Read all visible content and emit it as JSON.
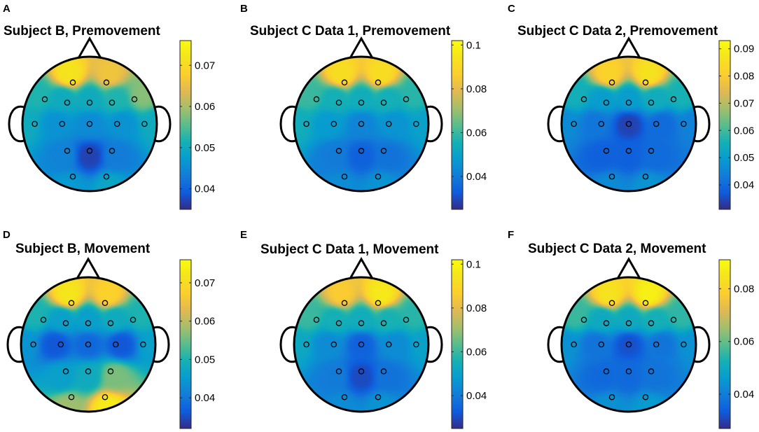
{
  "chart_data": [
    {
      "type": "heatmap",
      "panel": "A",
      "title": "Subject B, Premovement",
      "color_range": [
        0.035,
        0.076
      ],
      "colorbar_ticks": [
        "0.04",
        "0.05",
        "0.06",
        "0.07"
      ],
      "colorbar_tick_values": [
        0.04,
        0.05,
        0.06,
        0.07
      ],
      "electrodes": [
        {
          "x": -0.3,
          "y": 0.74,
          "v": 0.072
        },
        {
          "x": 0.3,
          "y": 0.74,
          "v": 0.066
        },
        {
          "x": -0.8,
          "y": 0.44,
          "v": 0.052
        },
        {
          "x": -0.4,
          "y": 0.38,
          "v": 0.05
        },
        {
          "x": 0.0,
          "y": 0.38,
          "v": 0.05
        },
        {
          "x": 0.4,
          "y": 0.38,
          "v": 0.052
        },
        {
          "x": 0.8,
          "y": 0.44,
          "v": 0.058
        },
        {
          "x": -0.98,
          "y": 0.0,
          "v": 0.05
        },
        {
          "x": -0.49,
          "y": 0.0,
          "v": 0.046
        },
        {
          "x": 0.0,
          "y": 0.0,
          "v": 0.045
        },
        {
          "x": 0.49,
          "y": 0.0,
          "v": 0.046
        },
        {
          "x": 0.98,
          "y": 0.0,
          "v": 0.05
        },
        {
          "x": -0.4,
          "y": -0.48,
          "v": 0.044
        },
        {
          "x": 0.0,
          "y": -0.48,
          "v": 0.037
        },
        {
          "x": 0.4,
          "y": -0.48,
          "v": 0.043
        },
        {
          "x": -0.3,
          "y": -0.94,
          "v": 0.047
        },
        {
          "x": 0.3,
          "y": -0.94,
          "v": 0.049
        }
      ]
    },
    {
      "type": "heatmap",
      "panel": "B",
      "title": "Subject C Data 1, Premovement",
      "color_range": [
        0.025,
        0.102
      ],
      "colorbar_ticks": [
        "0.04",
        "0.06",
        "0.08",
        "0.1"
      ],
      "colorbar_tick_values": [
        0.04,
        0.06,
        0.08,
        0.1
      ],
      "electrodes": [
        {
          "x": -0.3,
          "y": 0.74,
          "v": 0.092
        },
        {
          "x": 0.3,
          "y": 0.74,
          "v": 0.092
        },
        {
          "x": -0.8,
          "y": 0.44,
          "v": 0.06
        },
        {
          "x": -0.4,
          "y": 0.38,
          "v": 0.055
        },
        {
          "x": 0.0,
          "y": 0.38,
          "v": 0.054
        },
        {
          "x": 0.4,
          "y": 0.38,
          "v": 0.055
        },
        {
          "x": 0.8,
          "y": 0.44,
          "v": 0.058
        },
        {
          "x": -0.98,
          "y": 0.0,
          "v": 0.054
        },
        {
          "x": -0.49,
          "y": 0.0,
          "v": 0.048
        },
        {
          "x": 0.0,
          "y": 0.0,
          "v": 0.042
        },
        {
          "x": 0.49,
          "y": 0.0,
          "v": 0.046
        },
        {
          "x": 0.98,
          "y": 0.0,
          "v": 0.05
        },
        {
          "x": -0.4,
          "y": -0.48,
          "v": 0.04
        },
        {
          "x": 0.0,
          "y": -0.48,
          "v": 0.034
        },
        {
          "x": 0.4,
          "y": -0.48,
          "v": 0.038
        },
        {
          "x": -0.3,
          "y": -0.94,
          "v": 0.044
        },
        {
          "x": 0.3,
          "y": -0.94,
          "v": 0.046
        }
      ]
    },
    {
      "type": "heatmap",
      "panel": "C",
      "title": "Subject C Data 2, Premovement",
      "color_range": [
        0.031,
        0.093
      ],
      "colorbar_ticks": [
        "0.04",
        "0.05",
        "0.06",
        "0.07",
        "0.08",
        "0.09"
      ],
      "colorbar_tick_values": [
        0.04,
        0.05,
        0.06,
        0.07,
        0.08,
        0.09
      ],
      "electrodes": [
        {
          "x": -0.3,
          "y": 0.74,
          "v": 0.082
        },
        {
          "x": 0.3,
          "y": 0.74,
          "v": 0.086
        },
        {
          "x": -0.8,
          "y": 0.44,
          "v": 0.055
        },
        {
          "x": -0.4,
          "y": 0.38,
          "v": 0.05
        },
        {
          "x": 0.0,
          "y": 0.38,
          "v": 0.05
        },
        {
          "x": 0.4,
          "y": 0.38,
          "v": 0.054
        },
        {
          "x": 0.8,
          "y": 0.44,
          "v": 0.056
        },
        {
          "x": -0.98,
          "y": 0.0,
          "v": 0.046
        },
        {
          "x": -0.49,
          "y": 0.0,
          "v": 0.042
        },
        {
          "x": 0.0,
          "y": 0.0,
          "v": 0.034
        },
        {
          "x": 0.49,
          "y": 0.0,
          "v": 0.04
        },
        {
          "x": 0.98,
          "y": 0.0,
          "v": 0.044
        },
        {
          "x": -0.4,
          "y": -0.48,
          "v": 0.038
        },
        {
          "x": 0.0,
          "y": -0.48,
          "v": 0.038
        },
        {
          "x": 0.4,
          "y": -0.48,
          "v": 0.04
        },
        {
          "x": -0.3,
          "y": -0.94,
          "v": 0.046
        },
        {
          "x": 0.3,
          "y": -0.94,
          "v": 0.048
        }
      ]
    },
    {
      "type": "heatmap",
      "panel": "D",
      "title": "Subject B, Movement",
      "color_range": [
        0.032,
        0.076
      ],
      "colorbar_ticks": [
        "0.04",
        "0.05",
        "0.06",
        "0.07"
      ],
      "colorbar_tick_values": [
        0.04,
        0.05,
        0.06,
        0.07
      ],
      "electrodes": [
        {
          "x": -0.3,
          "y": 0.74,
          "v": 0.072
        },
        {
          "x": 0.3,
          "y": 0.74,
          "v": 0.068
        },
        {
          "x": -0.8,
          "y": 0.44,
          "v": 0.05
        },
        {
          "x": -0.4,
          "y": 0.38,
          "v": 0.046
        },
        {
          "x": 0.0,
          "y": 0.38,
          "v": 0.046
        },
        {
          "x": 0.4,
          "y": 0.38,
          "v": 0.048
        },
        {
          "x": 0.8,
          "y": 0.44,
          "v": 0.05
        },
        {
          "x": -0.98,
          "y": 0.0,
          "v": 0.044
        },
        {
          "x": -0.49,
          "y": 0.0,
          "v": 0.036
        },
        {
          "x": 0.0,
          "y": 0.0,
          "v": 0.038
        },
        {
          "x": 0.49,
          "y": 0.0,
          "v": 0.036
        },
        {
          "x": 0.98,
          "y": 0.0,
          "v": 0.046
        },
        {
          "x": -0.4,
          "y": -0.48,
          "v": 0.046
        },
        {
          "x": 0.0,
          "y": -0.48,
          "v": 0.048
        },
        {
          "x": 0.4,
          "y": -0.48,
          "v": 0.056
        },
        {
          "x": -0.3,
          "y": -0.94,
          "v": 0.058
        },
        {
          "x": 0.3,
          "y": -0.94,
          "v": 0.073
        }
      ]
    },
    {
      "type": "heatmap",
      "panel": "E",
      "title": "Subject C Data 1, Movement",
      "color_range": [
        0.025,
        0.102
      ],
      "colorbar_ticks": [
        "0.04",
        "0.06",
        "0.08",
        "0.1"
      ],
      "colorbar_tick_values": [
        0.04,
        0.06,
        0.08,
        0.1
      ],
      "electrodes": [
        {
          "x": -0.3,
          "y": 0.74,
          "v": 0.086
        },
        {
          "x": 0.3,
          "y": 0.74,
          "v": 0.096
        },
        {
          "x": -0.8,
          "y": 0.44,
          "v": 0.06
        },
        {
          "x": -0.4,
          "y": 0.38,
          "v": 0.055
        },
        {
          "x": 0.0,
          "y": 0.38,
          "v": 0.054
        },
        {
          "x": 0.4,
          "y": 0.38,
          "v": 0.056
        },
        {
          "x": 0.8,
          "y": 0.44,
          "v": 0.058
        },
        {
          "x": -0.98,
          "y": 0.0,
          "v": 0.052
        },
        {
          "x": -0.49,
          "y": 0.0,
          "v": 0.044
        },
        {
          "x": 0.0,
          "y": 0.0,
          "v": 0.034
        },
        {
          "x": 0.49,
          "y": 0.0,
          "v": 0.044
        },
        {
          "x": 0.98,
          "y": 0.0,
          "v": 0.05
        },
        {
          "x": -0.4,
          "y": -0.48,
          "v": 0.04
        },
        {
          "x": 0.0,
          "y": -0.48,
          "v": 0.03
        },
        {
          "x": 0.4,
          "y": -0.48,
          "v": 0.038
        },
        {
          "x": -0.3,
          "y": -0.94,
          "v": 0.044
        },
        {
          "x": 0.3,
          "y": -0.94,
          "v": 0.046
        }
      ]
    },
    {
      "type": "heatmap",
      "panel": "F",
      "title": "Subject C Data 2, Movement",
      "color_range": [
        0.027,
        0.091
      ],
      "colorbar_ticks": [
        "0.04",
        "0.06",
        "0.08"
      ],
      "colorbar_tick_values": [
        0.04,
        0.06,
        0.08
      ],
      "electrodes": [
        {
          "x": -0.3,
          "y": 0.74,
          "v": 0.084
        },
        {
          "x": 0.3,
          "y": 0.74,
          "v": 0.088
        },
        {
          "x": -0.8,
          "y": 0.44,
          "v": 0.056
        },
        {
          "x": -0.4,
          "y": 0.38,
          "v": 0.05
        },
        {
          "x": 0.0,
          "y": 0.38,
          "v": 0.05
        },
        {
          "x": 0.4,
          "y": 0.38,
          "v": 0.052
        },
        {
          "x": 0.8,
          "y": 0.44,
          "v": 0.055
        },
        {
          "x": -0.98,
          "y": 0.0,
          "v": 0.044
        },
        {
          "x": -0.49,
          "y": 0.0,
          "v": 0.038
        },
        {
          "x": 0.0,
          "y": 0.0,
          "v": 0.032
        },
        {
          "x": 0.49,
          "y": 0.0,
          "v": 0.038
        },
        {
          "x": 0.98,
          "y": 0.0,
          "v": 0.044
        },
        {
          "x": -0.4,
          "y": -0.48,
          "v": 0.036
        },
        {
          "x": 0.0,
          "y": -0.48,
          "v": 0.036
        },
        {
          "x": 0.4,
          "y": -0.48,
          "v": 0.038
        },
        {
          "x": -0.3,
          "y": -0.94,
          "v": 0.044
        },
        {
          "x": 0.3,
          "y": -0.94,
          "v": 0.046
        }
      ]
    }
  ]
}
